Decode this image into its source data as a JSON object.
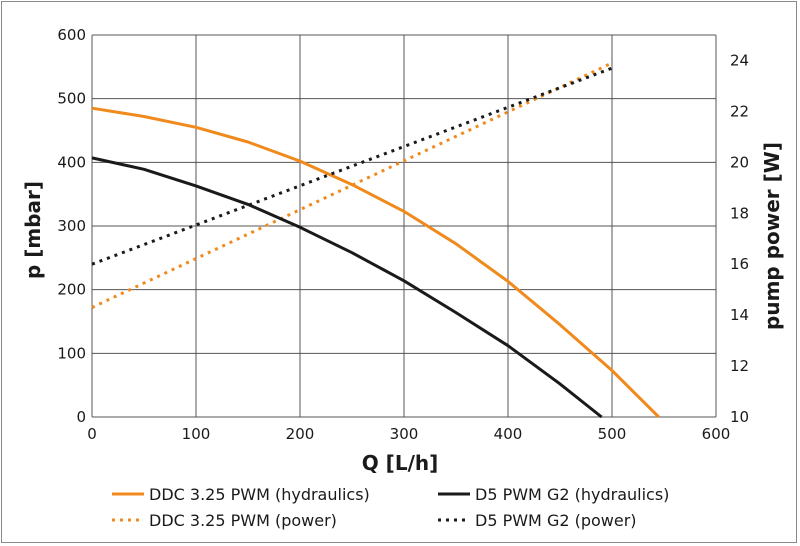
{
  "chart_data": {
    "type": "line",
    "xlabel": "Q [L/h]",
    "ylabel": "p [mbar]",
    "y2label": "pump power [W]",
    "xlim": [
      0,
      600
    ],
    "ylim": [
      0,
      600
    ],
    "y2lim": [
      10,
      25
    ],
    "xticks": [
      "0",
      "100",
      "200",
      "300",
      "400",
      "500",
      "600"
    ],
    "yticks": [
      "0",
      "100",
      "200",
      "300",
      "400",
      "500",
      "600"
    ],
    "y2ticks": [
      "10",
      "12",
      "14",
      "16",
      "18",
      "20",
      "22",
      "24"
    ],
    "grid": true,
    "legend_position": "bottom",
    "series": [
      {
        "name": "DDC 3.25 PWM (hydraulics)",
        "axis": "left",
        "style": "solid",
        "color": "#f08a1c",
        "x": [
          0,
          50,
          100,
          150,
          200,
          250,
          300,
          350,
          400,
          450,
          500,
          545
        ],
        "y": [
          485,
          472,
          455,
          432,
          402,
          365,
          323,
          272,
          213,
          145,
          73,
          0
        ]
      },
      {
        "name": "DDC 3.25 PWM (power)",
        "axis": "right",
        "style": "dotted",
        "color": "#f08a1c",
        "x": [
          0,
          500
        ],
        "y": [
          14.3,
          23.9
        ]
      },
      {
        "name": "D5 PWM G2 (hydraulics)",
        "axis": "left",
        "style": "solid",
        "color": "#1a1a1a",
        "x": [
          0,
          50,
          100,
          150,
          200,
          250,
          300,
          350,
          400,
          450,
          490
        ],
        "y": [
          407,
          389,
          363,
          334,
          298,
          258,
          214,
          164,
          112,
          52,
          0
        ]
      },
      {
        "name": "D5 PWM G2 (power)",
        "axis": "right",
        "style": "dotted",
        "color": "#1a1a1a",
        "x": [
          0,
          500
        ],
        "y": [
          16.0,
          23.7
        ]
      }
    ]
  }
}
